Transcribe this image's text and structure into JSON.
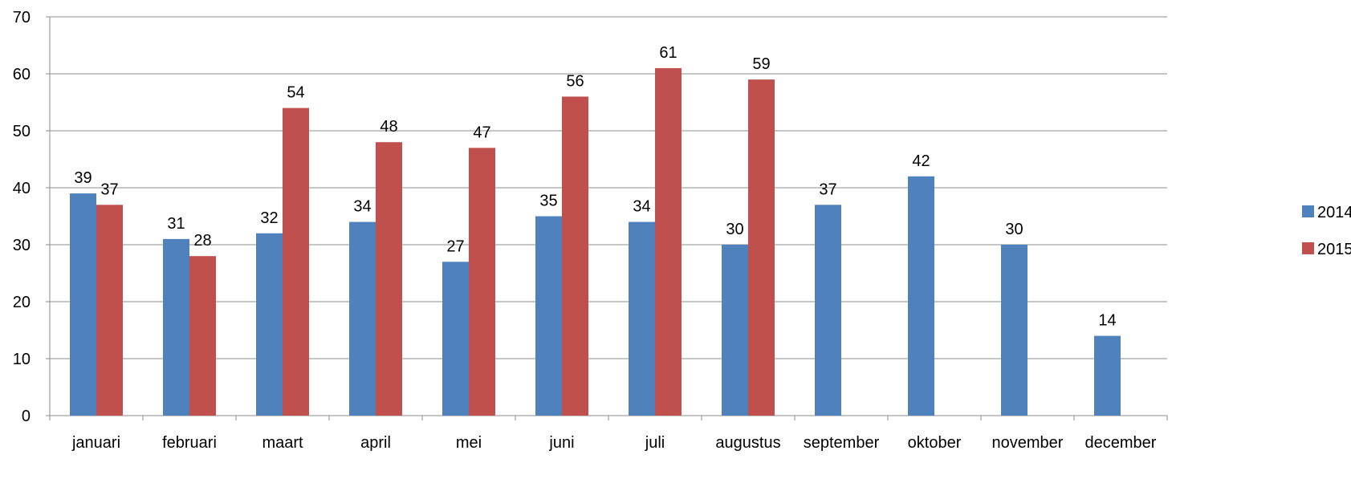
{
  "chart_data": {
    "type": "bar",
    "title": "",
    "xlabel": "",
    "ylabel": "",
    "categories": [
      "januari",
      "februari",
      "maart",
      "april",
      "mei",
      "juni",
      "juli",
      "augustus",
      "september",
      "oktober",
      "november",
      "december"
    ],
    "series": [
      {
        "name": "2014",
        "color": "#4F81BD",
        "values": [
          39,
          31,
          32,
          34,
          27,
          35,
          34,
          30,
          37,
          42,
          30,
          14
        ]
      },
      {
        "name": "2015",
        "color": "#C0504D",
        "values": [
          37,
          28,
          54,
          48,
          47,
          56,
          61,
          59,
          null,
          null,
          null,
          null
        ]
      }
    ],
    "ylim": [
      0,
      70
    ],
    "yticks": [
      0,
      10,
      20,
      30,
      40,
      50,
      60,
      70
    ],
    "grid": true,
    "legend_position": "right",
    "data_labels": true
  }
}
